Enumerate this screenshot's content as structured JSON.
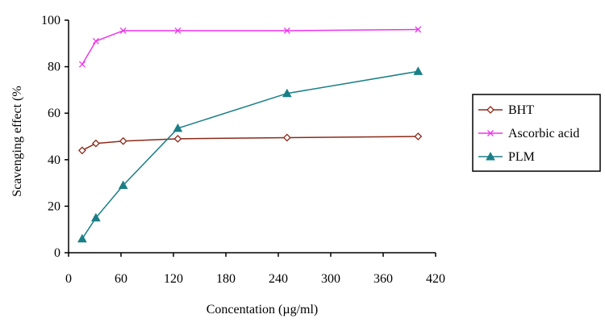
{
  "chart_data": {
    "type": "line",
    "xlabel": "Concentation (µg/ml)",
    "ylabel": "Scavenging effect (%",
    "xlim": [
      0,
      420
    ],
    "ylim": [
      0,
      100
    ],
    "xticks": [
      "0",
      "60",
      "120",
      "180",
      "240",
      "300",
      "360",
      "420"
    ],
    "yticks": [
      "0",
      "20",
      "40",
      "60",
      "80",
      "100"
    ],
    "grid": false,
    "legend_position": "right",
    "series": [
      {
        "name": "BHT",
        "color": "#8b2a1a",
        "marker": "diamond",
        "x": [
          15.6,
          31.25,
          62.5,
          125,
          250,
          400
        ],
        "y": [
          44,
          47,
          48,
          49,
          49.5,
          50
        ]
      },
      {
        "name": "Ascorbic acid",
        "color": "#ee33ee",
        "marker": "x",
        "x": [
          15.6,
          31.25,
          62.5,
          125,
          250,
          400
        ],
        "y": [
          81,
          91,
          95.5,
          95.5,
          95.5,
          96
        ]
      },
      {
        "name": "PLM",
        "color": "#1a7f86",
        "marker": "triangle",
        "x": [
          15.6,
          31.25,
          62.5,
          125,
          250,
          400
        ],
        "y": [
          6,
          15,
          29,
          53.5,
          68.5,
          78
        ]
      }
    ]
  }
}
